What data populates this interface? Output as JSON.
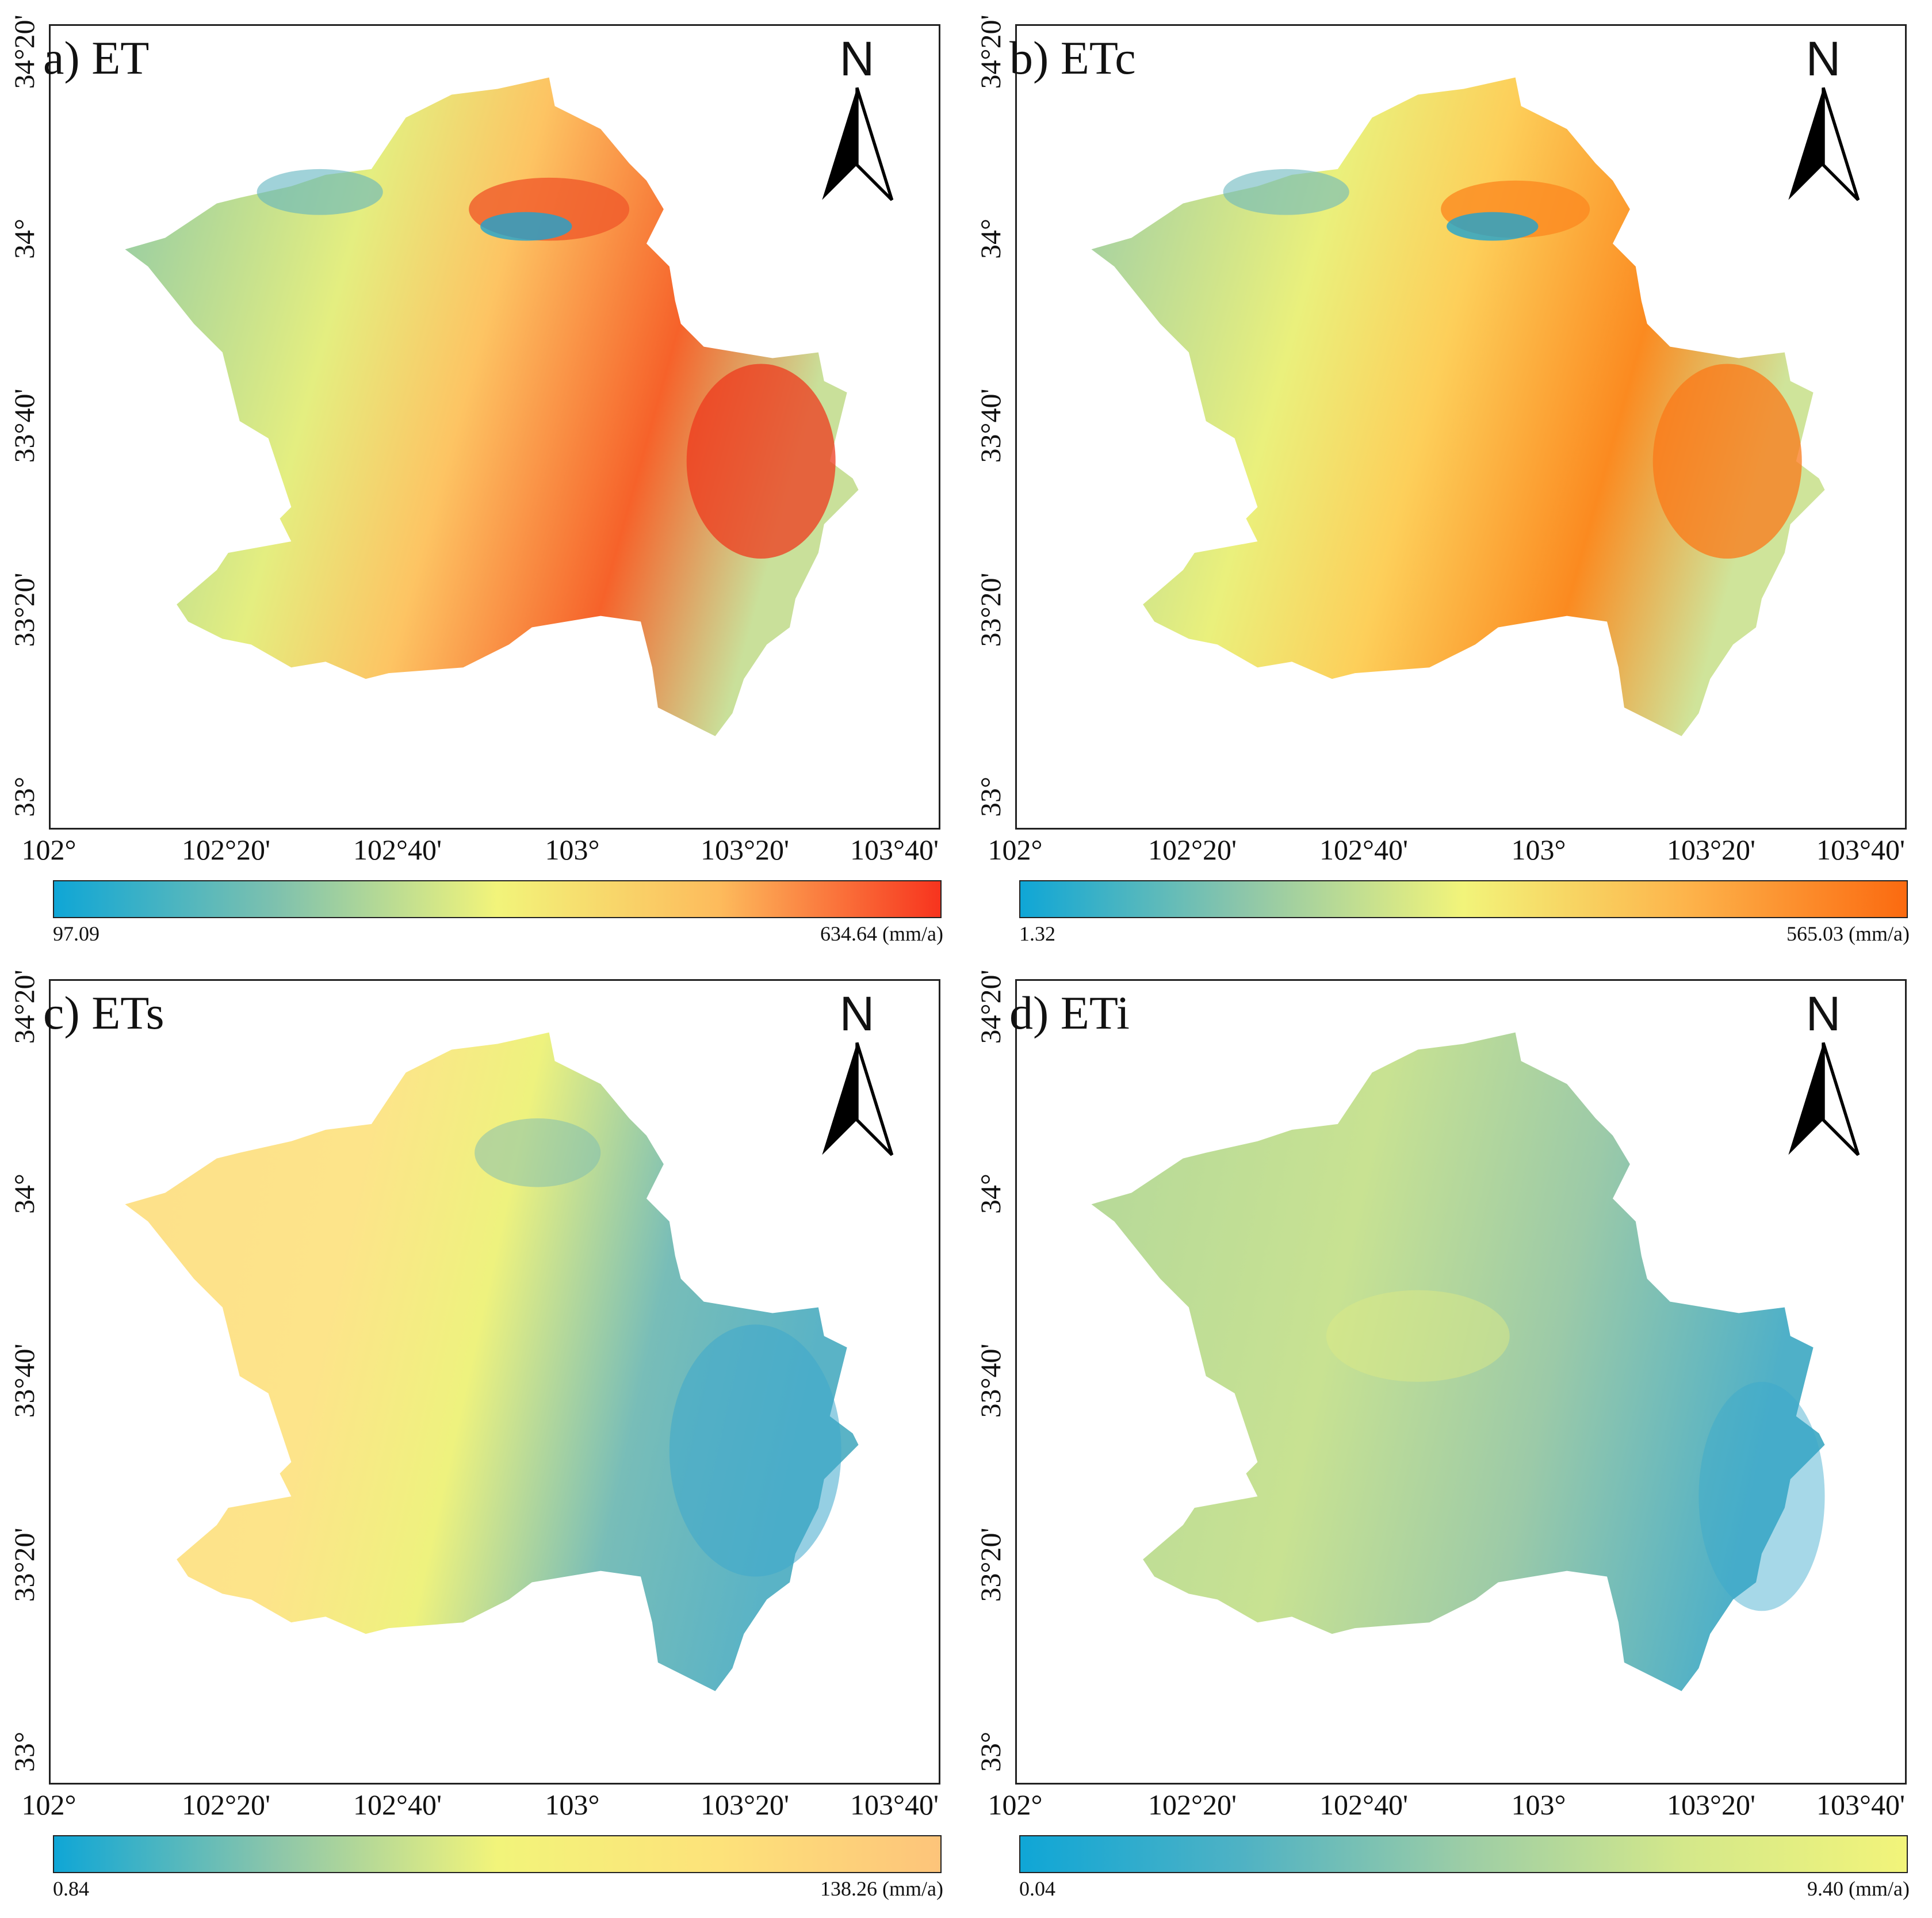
{
  "panels": [
    {
      "label": "a) ET",
      "legend_min": "97.09",
      "legend_max": "634.64 (mm/a)",
      "colors": [
        "#0fa6d6",
        "#7ec1ae",
        "#f2f47a",
        "#fdbb5c",
        "#f7341e"
      ]
    },
    {
      "label": "b) ETc",
      "legend_min": "1.32",
      "legend_max": "565.03 (mm/a)",
      "colors": [
        "#0fa6d6",
        "#8cc6aa",
        "#f2f47a",
        "#fdb44b",
        "#fb6a10"
      ]
    },
    {
      "label": "c) ETs",
      "legend_min": "0.84",
      "legend_max": "138.26 (mm/a)",
      "colors": [
        "#0fa6d6",
        "#8cc6aa",
        "#f2f47a",
        "#fde27a",
        "#fdc47a"
      ]
    },
    {
      "label": "d) ETi",
      "legend_min": "0.04",
      "legend_max": "9.40 (mm/a)",
      "colors": [
        "#0fa6d6",
        "#4fb2c4",
        "#9ccda6",
        "#d4e88a",
        "#f2f47a"
      ]
    }
  ],
  "axes": {
    "x_ticks": [
      "102°",
      "102°20'",
      "102°40'",
      "103°",
      "103°20'",
      "103°40'"
    ],
    "y_ticks": [
      "34°20'",
      "34°",
      "33°40'",
      "33°20'",
      "33°"
    ]
  },
  "north_label": "N"
}
